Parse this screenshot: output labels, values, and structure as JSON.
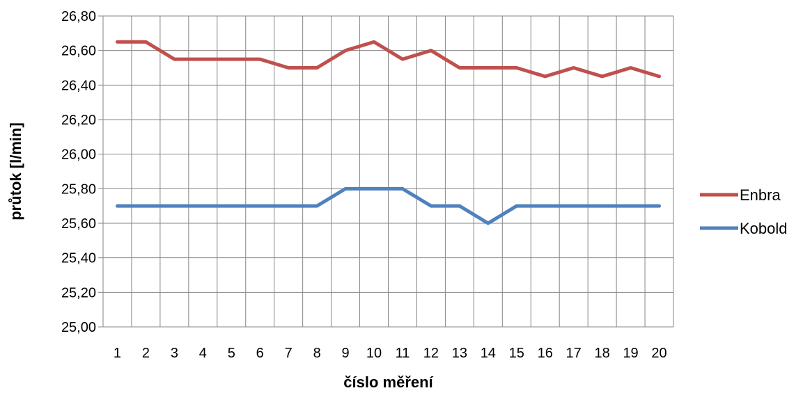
{
  "chart_data": {
    "type": "line",
    "title": "",
    "xlabel": "číslo měření",
    "ylabel": "průtok [l/min]",
    "categories": [
      "1",
      "2",
      "3",
      "4",
      "5",
      "6",
      "7",
      "8",
      "9",
      "10",
      "11",
      "12",
      "13",
      "14",
      "15",
      "16",
      "17",
      "18",
      "19",
      "20"
    ],
    "ylim": [
      25.0,
      26.8
    ],
    "yticks": [
      "25,00",
      "25,20",
      "25,40",
      "25,60",
      "25,80",
      "26,00",
      "26,20",
      "26,40",
      "26,60",
      "26,80"
    ],
    "grid": true,
    "legend_position": "right",
    "series": [
      {
        "name": "Enbra",
        "color": "#C0504D",
        "values": [
          26.65,
          26.65,
          26.55,
          26.55,
          26.55,
          26.55,
          26.5,
          26.5,
          26.6,
          26.65,
          26.55,
          26.6,
          26.5,
          26.5,
          26.5,
          26.45,
          26.5,
          26.45,
          26.5,
          26.45
        ]
      },
      {
        "name": "Kobold",
        "color": "#4F81BD",
        "values": [
          25.7,
          25.7,
          25.7,
          25.7,
          25.7,
          25.7,
          25.7,
          25.7,
          25.8,
          25.8,
          25.8,
          25.7,
          25.7,
          25.6,
          25.7,
          25.7,
          25.7,
          25.7,
          25.7,
          25.7
        ]
      }
    ]
  }
}
